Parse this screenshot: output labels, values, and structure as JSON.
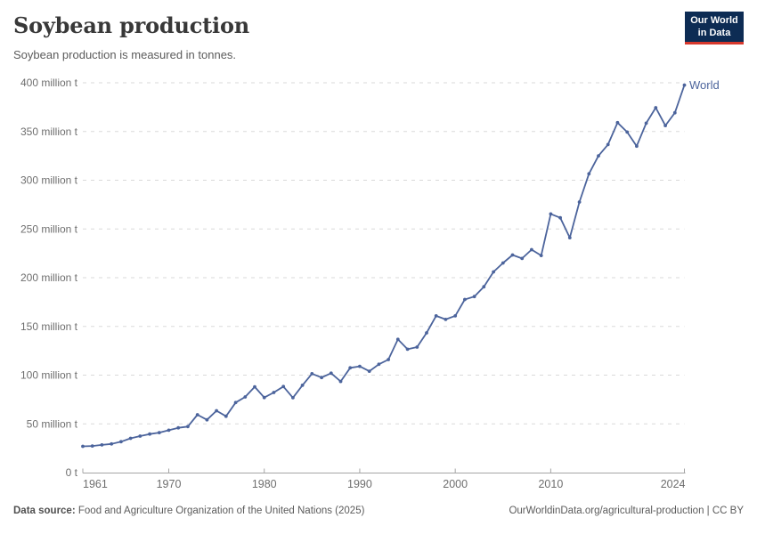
{
  "header": {
    "title": "Soybean production",
    "subtitle": "Soybean production is measured in tonnes."
  },
  "logo": {
    "line1": "Our World",
    "line2": "in Data"
  },
  "chart_data": {
    "type": "line",
    "title": "Soybean production",
    "unit": "tonnes",
    "grid": "horizontal-dashed",
    "legend_position": "end-of-line-label",
    "end_label": "World",
    "xlim": [
      1961,
      2024
    ],
    "ylim": [
      0,
      400
    ],
    "xticks": [
      1961,
      1970,
      1980,
      1990,
      2000,
      2010,
      2024
    ],
    "yticks": [
      {
        "value": 0,
        "label": "0 t"
      },
      {
        "value": 50,
        "label": "50 million t"
      },
      {
        "value": 100,
        "label": "100 million t"
      },
      {
        "value": 150,
        "label": "150 million t"
      },
      {
        "value": 200,
        "label": "200 million t"
      },
      {
        "value": 250,
        "label": "250 million t"
      },
      {
        "value": 300,
        "label": "300 million t"
      },
      {
        "value": 350,
        "label": "350 million t"
      },
      {
        "value": 400,
        "label": "400 million t"
      }
    ],
    "x": [
      1961,
      1962,
      1963,
      1964,
      1965,
      1966,
      1967,
      1968,
      1969,
      1970,
      1971,
      1972,
      1973,
      1974,
      1975,
      1976,
      1977,
      1978,
      1979,
      1980,
      1981,
      1982,
      1983,
      1984,
      1985,
      1986,
      1987,
      1988,
      1989,
      1990,
      1991,
      1992,
      1993,
      1994,
      1995,
      1996,
      1997,
      1998,
      1999,
      2000,
      2001,
      2002,
      2003,
      2004,
      2005,
      2006,
      2007,
      2008,
      2009,
      2010,
      2011,
      2012,
      2013,
      2014,
      2015,
      2016,
      2017,
      2018,
      2019,
      2020,
      2021,
      2022,
      2023,
      2024
    ],
    "series": [
      {
        "name": "World",
        "values": [
          26.9,
          27.3,
          28.4,
          29.4,
          31.7,
          35.2,
          37.4,
          39.5,
          41.0,
          43.5,
          45.9,
          47.2,
          59.4,
          54.2,
          63.5,
          57.8,
          71.9,
          77.6,
          88.0,
          77.0,
          82.2,
          88.3,
          76.8,
          89.6,
          101.5,
          97.5,
          102.0,
          93.5,
          107.5,
          109.0,
          104.0,
          111.1,
          116.0,
          136.7,
          126.6,
          128.8,
          143.4,
          160.8,
          157.2,
          160.8,
          177.6,
          180.6,
          190.7,
          205.9,
          215.1,
          223.3,
          219.7,
          228.8,
          222.7,
          265.4,
          261.5,
          241.0,
          277.6,
          306.6,
          325.0,
          336.6,
          359.1,
          349.4,
          335.0,
          358.5,
          374.4,
          356.1,
          369.2,
          397.6
        ]
      }
    ]
  },
  "footer": {
    "source_bold": "Data source:",
    "source_rest": "Food and Agriculture Organization of the United Nations (2025)",
    "link": "OurWorldinData.org/agricultural-production | CC BY"
  },
  "colors": {
    "line": "#4C649C",
    "end_label": "#4C649C",
    "grid": "#dadada",
    "axis": "#a5a5a5",
    "tick_label": "#6e6e6e",
    "title": "#383838",
    "subtitle": "#5b5b5b",
    "footer": "#5b5b5b",
    "logo_bg": "#0d2c54",
    "logo_accent": "#d7382d"
  }
}
